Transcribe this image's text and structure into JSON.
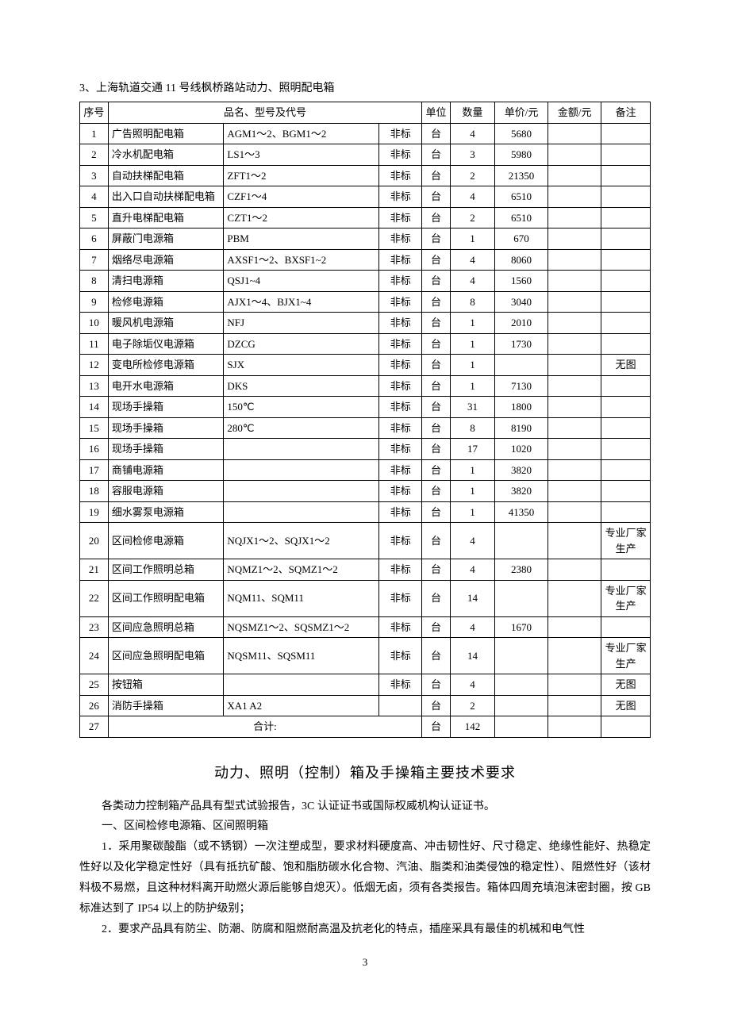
{
  "section_title": "3、上海轨道交通 11 号线枫桥路站动力、照明配电箱",
  "table": {
    "columns": [
      "序号",
      "品名、型号及代号",
      "单位",
      "数量",
      "单价/元",
      "金额/元",
      "备注"
    ],
    "header_std_hidden": "",
    "rows": [
      {
        "seq": "1",
        "name": "广告照明配电箱",
        "model": "AGM1～2、BGM1～2",
        "std": "非标",
        "unit": "台",
        "qty": "4",
        "up": "5680",
        "amt": "",
        "note": ""
      },
      {
        "seq": "2",
        "name": "冷水机配电箱",
        "model": "LS1～3",
        "std": "非标",
        "unit": "台",
        "qty": "3",
        "up": "5980",
        "amt": "",
        "note": ""
      },
      {
        "seq": "3",
        "name": "自动扶梯配电箱",
        "model": "ZFT1～2",
        "std": "非标",
        "unit": "台",
        "qty": "2",
        "up": "21350",
        "amt": "",
        "note": ""
      },
      {
        "seq": "4",
        "name": "出入口自动扶梯配电箱",
        "model": "CZF1～4",
        "std": "非标",
        "unit": "台",
        "qty": "4",
        "up": "6510",
        "amt": "",
        "note": ""
      },
      {
        "seq": "5",
        "name": "直升电梯配电箱",
        "model": "CZT1～2",
        "std": "非标",
        "unit": "台",
        "qty": "2",
        "up": "6510",
        "amt": "",
        "note": ""
      },
      {
        "seq": "6",
        "name": "屏蔽门电源箱",
        "model": "PBM",
        "std": "非标",
        "unit": "台",
        "qty": "1",
        "up": "670",
        "amt": "",
        "note": ""
      },
      {
        "seq": "7",
        "name": "烟络尽电源箱",
        "model": "AXSF1～2、BXSF1~2",
        "std": "非标",
        "unit": "台",
        "qty": "4",
        "up": "8060",
        "amt": "",
        "note": ""
      },
      {
        "seq": "8",
        "name": "清扫电源箱",
        "model": "QSJ1~4",
        "std": "非标",
        "unit": "台",
        "qty": "4",
        "up": "1560",
        "amt": "",
        "note": ""
      },
      {
        "seq": "9",
        "name": "检修电源箱",
        "model": "AJX1～4、BJX1~4",
        "std": "非标",
        "unit": "台",
        "qty": "8",
        "up": "3040",
        "amt": "",
        "note": ""
      },
      {
        "seq": "10",
        "name": "暖风机电源箱",
        "model": "NFJ",
        "std": "非标",
        "unit": "台",
        "qty": "1",
        "up": "2010",
        "amt": "",
        "note": ""
      },
      {
        "seq": "11",
        "name": "电子除垢仪电源箱",
        "model": "DZCG",
        "std": "非标",
        "unit": "台",
        "qty": "1",
        "up": "1730",
        "amt": "",
        "note": ""
      },
      {
        "seq": "12",
        "name": "变电所检修电源箱",
        "model": "SJX",
        "std": "非标",
        "unit": "台",
        "qty": "1",
        "up": "",
        "amt": "",
        "note": "无图"
      },
      {
        "seq": "13",
        "name": "电开水电源箱",
        "model": "DKS",
        "std": "非标",
        "unit": "台",
        "qty": "1",
        "up": "7130",
        "amt": "",
        "note": ""
      },
      {
        "seq": "14",
        "name": "现场手操箱",
        "model": "150℃",
        "std": "非标",
        "unit": "台",
        "qty": "31",
        "up": "1800",
        "amt": "",
        "note": ""
      },
      {
        "seq": "15",
        "name": "现场手操箱",
        "model": "280℃",
        "std": "非标",
        "unit": "台",
        "qty": "8",
        "up": "8190",
        "amt": "",
        "note": ""
      },
      {
        "seq": "16",
        "name": "现场手操箱",
        "model": "",
        "std": "非标",
        "unit": "台",
        "qty": "17",
        "up": "1020",
        "amt": "",
        "note": ""
      },
      {
        "seq": "17",
        "name": "商铺电源箱",
        "model": "",
        "std": "非标",
        "unit": "台",
        "qty": "1",
        "up": "3820",
        "amt": "",
        "note": ""
      },
      {
        "seq": "18",
        "name": "容服电源箱",
        "model": "",
        "std": "非标",
        "unit": "台",
        "qty": "1",
        "up": "3820",
        "amt": "",
        "note": ""
      },
      {
        "seq": "19",
        "name": "细水雾泵电源箱",
        "model": "",
        "std": "非标",
        "unit": "台",
        "qty": "1",
        "up": "41350",
        "amt": "",
        "note": ""
      },
      {
        "seq": "20",
        "name": "区间检修电源箱",
        "model": "NQJX1～2、SQJX1～2",
        "std": "非标",
        "unit": "台",
        "qty": "4",
        "up": "",
        "amt": "",
        "note": "专业厂家生产"
      },
      {
        "seq": "21",
        "name": "区间工作照明总箱",
        "model": "NQMZ1～2、SQMZ1～2",
        "std": "非标",
        "unit": "台",
        "qty": "4",
        "up": "2380",
        "amt": "",
        "note": ""
      },
      {
        "seq": "22",
        "name": "区间工作照明配电箱",
        "model": "NQM11、SQM11",
        "std": "非标",
        "unit": "台",
        "qty": "14",
        "up": "",
        "amt": "",
        "note": "专业厂家生产"
      },
      {
        "seq": "23",
        "name": "区间应急照明总箱",
        "model": "NQSMZ1～2、SQSMZ1～2",
        "std": "非标",
        "unit": "台",
        "qty": "4",
        "up": "1670",
        "amt": "",
        "note": ""
      },
      {
        "seq": "24",
        "name": "区间应急照明配电箱",
        "model": "NQSM11、SQSM11",
        "std": "非标",
        "unit": "台",
        "qty": "14",
        "up": "",
        "amt": "",
        "note": "专业厂家生产"
      },
      {
        "seq": "25",
        "name": "按钮箱",
        "model": "",
        "std": "非标",
        "unit": "台",
        "qty": "4",
        "up": "",
        "amt": "",
        "note": "无图"
      },
      {
        "seq": "26",
        "name": "消防手操箱",
        "model": "XA1 A2",
        "std": "",
        "unit": "台",
        "qty": "2",
        "up": "",
        "amt": "",
        "note": "无图"
      }
    ],
    "total": {
      "label": "合计:",
      "unit": "台",
      "qty": "142",
      "up": "",
      "amt": "",
      "note": ""
    },
    "total_seq": "27"
  },
  "heading": "动力、照明（控制）箱及手操箱主要技术要求",
  "paragraphs": [
    "各类动力控制箱产品具有型式试验报告，3C 认证证书或国际权威机构认证证书。",
    "一、区间检修电源箱、区间照明箱",
    "1．采用聚碳酸酯（或不锈钢）一次注塑成型，要求材料硬度高、冲击韧性好、尺寸稳定、绝缘性能好、热稳定性好以及化学稳定性好（具有抵抗矿酸、饱和脂肪碳水化合物、汽油、脂类和油类侵蚀的稳定性）、阻燃性好（该材料极不易燃，且这种材料离开助燃火源后能够自熄灭）。低烟无卤，须有各类报告。箱体四周充填泡沫密封圈，按 GB 标准达到了 IP54 以上的防护级别；",
    "2．要求产品具有防尘、防潮、防腐和阻燃耐高温及抗老化的特点，插座采具有最佳的机械和电气性"
  ],
  "page_number": "3"
}
